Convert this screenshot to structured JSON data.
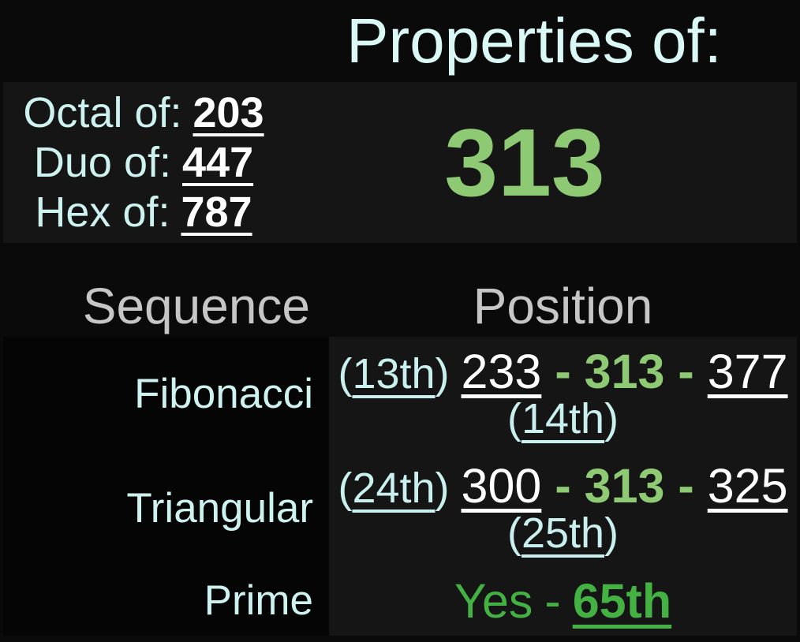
{
  "header": {
    "title": "Properties of:"
  },
  "top": {
    "conversions": [
      {
        "label": "Octal of:",
        "value": "203"
      },
      {
        "label": "Duo of:",
        "value": "447"
      },
      {
        "label": "Hex of:",
        "value": "787"
      }
    ],
    "number": "313"
  },
  "table": {
    "headers": {
      "sequence": "Sequence",
      "position": "Position"
    },
    "punct": {
      "open": "(",
      "close": ")",
      "dash": "-"
    },
    "rows": [
      {
        "label": "Fibonacci",
        "before_ordinal": "13th",
        "before": "233",
        "number": "313",
        "after": "377",
        "after_ordinal": "14th"
      },
      {
        "label": "Triangular",
        "before_ordinal": "24th",
        "before": "300",
        "number": "313",
        "after": "325",
        "after_ordinal": "25th"
      },
      {
        "label": "Prime",
        "answer": "Yes",
        "ordinal": "65th"
      }
    ]
  },
  "colors": {
    "page_bg": "#0a0a0a",
    "panel_bg": "#151515",
    "label_cell_bg": "#050505",
    "title_cyan": "#d9f8f6",
    "label_cyan": "#cdf2f0",
    "header_gray": "#c6c6c6",
    "number_white": "#ffffff",
    "sequence_green": "#8ec973",
    "prime_green": "#43b243"
  }
}
